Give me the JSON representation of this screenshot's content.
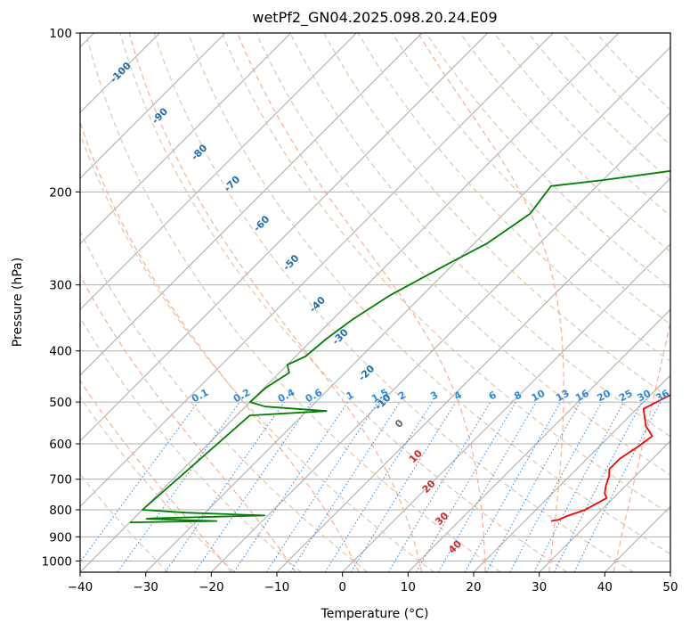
{
  "chart_data": {
    "type": "line",
    "title": "wetPf2_GN04.2025.098.20.24.E09",
    "xlabel": "Temperature (°C)",
    "ylabel": "Pressure (hPa)",
    "xlim": [
      -40,
      50
    ],
    "ylim": [
      1050,
      100
    ],
    "y_scale": "log",
    "x_ticks": [
      -40,
      -30,
      -20,
      -10,
      0,
      10,
      20,
      30,
      40,
      50
    ],
    "y_ticks": [
      100,
      200,
      300,
      400,
      500,
      600,
      700,
      800,
      900,
      1000
    ],
    "grid": true,
    "series": [
      {
        "color": "#ff0000",
        "points": [
          [
            24,
            840
          ],
          [
            25,
            835
          ],
          [
            25.5,
            825
          ],
          [
            27.5,
            800
          ],
          [
            29,
            760
          ],
          [
            28,
            745
          ],
          [
            27,
            720
          ],
          [
            26,
            690
          ],
          [
            25,
            670
          ],
          [
            25,
            640
          ],
          [
            26,
            605
          ],
          [
            26.5,
            580
          ],
          [
            24,
            555
          ],
          [
            21,
            515
          ],
          [
            22,
            500
          ],
          [
            23,
            485
          ],
          [
            22.5,
            460
          ],
          [
            22,
            440
          ],
          [
            22,
            420
          ],
          [
            20,
            380
          ],
          [
            17,
            345
          ],
          [
            14,
            310
          ],
          [
            11,
            280
          ],
          [
            9.5,
            270
          ],
          [
            7.5,
            250
          ],
          [
            5,
            225
          ],
          [
            3,
            210
          ],
          [
            1.5,
            195
          ],
          [
            2.5,
            180
          ],
          [
            2,
            170
          ],
          [
            0,
            140
          ],
          [
            0,
            130
          ],
          [
            1.5,
            120
          ],
          [
            3,
            116
          ],
          [
            3,
            110
          ],
          [
            4,
            100
          ]
        ]
      },
      {
        "color": "#008000",
        "points": [
          [
            -40,
            845
          ],
          [
            -27,
            840
          ],
          [
            -38,
            832
          ],
          [
            -37,
            830
          ],
          [
            -20.5,
            820
          ],
          [
            -33,
            810
          ],
          [
            -40,
            800
          ],
          [
            -40,
            800
          ],
          [
            -38,
            530
          ],
          [
            -27,
            520
          ],
          [
            -37,
            510
          ],
          [
            -40,
            500
          ],
          [
            -39.8,
            470
          ],
          [
            -38.5,
            440
          ],
          [
            -40,
            425
          ],
          [
            -38.5,
            410
          ],
          [
            -38,
            380
          ],
          [
            -37,
            350
          ],
          [
            -35,
            315
          ],
          [
            -31,
            275
          ],
          [
            -28,
            250
          ],
          [
            -26,
            220
          ],
          [
            -27,
            195
          ],
          [
            -20,
            190
          ],
          [
            -8,
            180
          ],
          [
            -6,
            170
          ],
          [
            -5,
            160
          ],
          [
            -3,
            140
          ],
          [
            -2.5,
            125
          ],
          [
            0,
            112
          ],
          [
            2.5,
            100
          ]
        ]
      }
    ],
    "isotherm_step": 10,
    "isotherm_color": "#aaaaaa",
    "dry_adiabats": [
      -30,
      -20,
      -10,
      0,
      10,
      20,
      30,
      40,
      50,
      60,
      70,
      80,
      90,
      100,
      110,
      120,
      130,
      140,
      150,
      160,
      170
    ],
    "dry_adiabat_color": "#e3c7a8",
    "moist_adiabats": [
      -20,
      -10,
      0,
      10,
      20,
      30,
      40
    ],
    "moist_adiabat_color": "#f5a98a",
    "mixing_ratio_values": [
      0.1,
      0.2,
      0.4,
      0.6,
      1,
      1.5,
      2,
      3,
      4,
      6,
      8,
      10,
      13,
      16,
      20,
      25,
      30,
      36
    ],
    "mixing_ratio_labels": [
      "0.1",
      "0.2",
      "0.4",
      "0.6",
      "1",
      "1.5",
      "2",
      "3",
      "4",
      "6",
      "8",
      "10",
      "13",
      "16",
      "20",
      "25",
      "30",
      "36"
    ],
    "mixing_ratio_color": "#2a8ae0",
    "temperature_labels": [
      {
        "text": "-100",
        "x": -33.5,
        "p": 120
      },
      {
        "text": "-90",
        "x": -27.5,
        "p": 145
      },
      {
        "text": "-80",
        "x": -21.5,
        "p": 170
      },
      {
        "text": "-70",
        "x": -16.5,
        "p": 195
      },
      {
        "text": "-60",
        "x": -12.0,
        "p": 232
      },
      {
        "text": "-50",
        "x": -7.5,
        "p": 275
      },
      {
        "text": "-40",
        "x": -3.5,
        "p": 330
      },
      {
        "text": "-30",
        "x": 0.0,
        "p": 380
      },
      {
        "text": "-20",
        "x": 4.0,
        "p": 445
      },
      {
        "text": "-10",
        "x": 6.5,
        "p": 505
      },
      {
        "text": "0",
        "x": 9.0,
        "p": 555
      },
      {
        "text": "10",
        "x": 11.5,
        "p": 640
      },
      {
        "text": "20",
        "x": 13.5,
        "p": 730
      },
      {
        "text": "30",
        "x": 15.5,
        "p": 840
      },
      {
        "text": "40",
        "x": 17.5,
        "p": 950
      }
    ],
    "temperature_label_colors": {
      "cold": "#1f6fb0",
      "warm": "#d62728"
    }
  }
}
